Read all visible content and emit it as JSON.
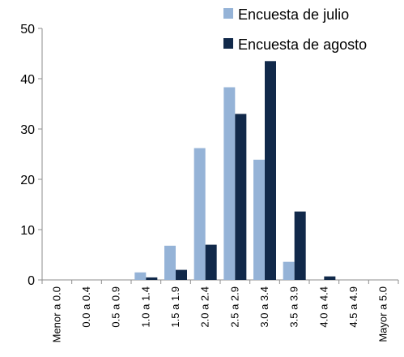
{
  "chart_data": {
    "type": "bar",
    "categories": [
      "Menor a 0.0",
      "0.0 a 0.4",
      "0.5 a 0.9",
      "1.0 a 1.4",
      "1.5 a 1.9",
      "2.0 a 2.4",
      "2.5 a 2.9",
      "3.0 a 3.4",
      "3.5 a 3.9",
      "4.0 a 4.4",
      "4.5 a 4.9",
      "Mayor a 5.0"
    ],
    "series": [
      {
        "name": "Encuesta de julio",
        "color": "#95B3D7",
        "values": [
          0,
          0,
          0,
          1.5,
          6.8,
          26.2,
          38.3,
          23.9,
          3.6,
          0,
          0,
          0
        ]
      },
      {
        "name": "Encuesta de agosto",
        "color": "#11294A",
        "values": [
          0,
          0,
          0,
          0.5,
          2.0,
          7.0,
          33.0,
          43.5,
          13.6,
          0.7,
          0,
          0
        ]
      }
    ],
    "yticks": [
      "0",
      "10",
      "20",
      "30",
      "40",
      "50"
    ],
    "ylim": [
      0,
      50
    ],
    "title": "",
    "xlabel": "",
    "ylabel": "",
    "grid": false,
    "legend_position": "top-right"
  }
}
